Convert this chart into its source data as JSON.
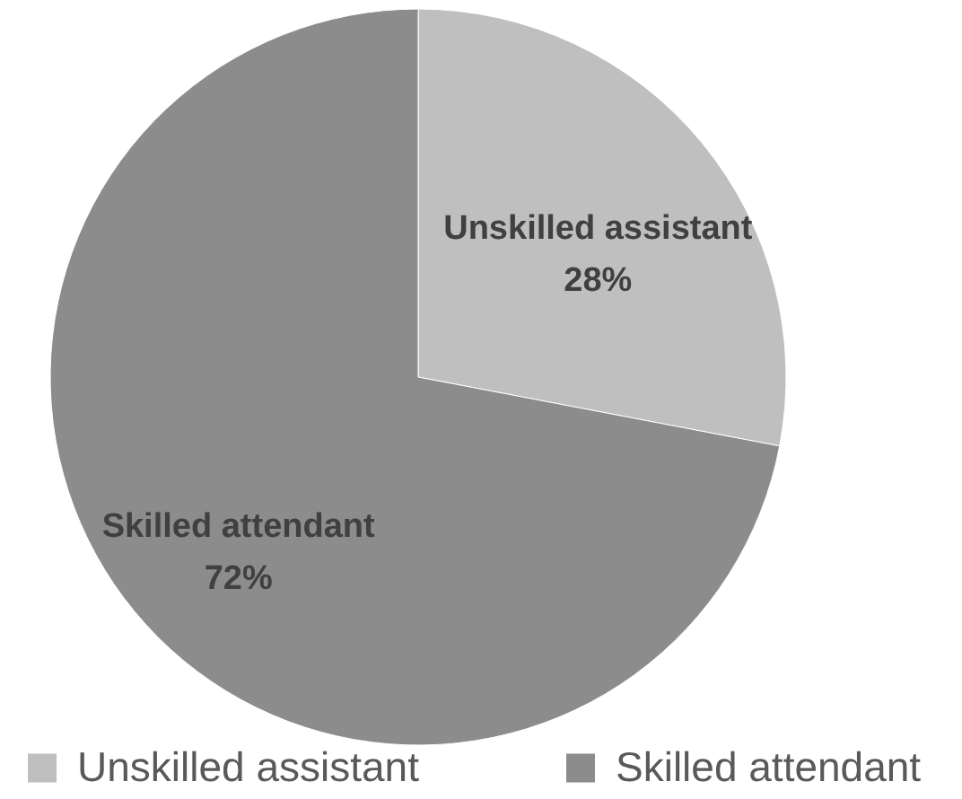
{
  "chart_data": {
    "type": "pie",
    "categories": [
      "Unskilled assistant",
      "Skilled attendant"
    ],
    "values": [
      28,
      72
    ],
    "colors": [
      "#bfbfbf",
      "#8c8c8c"
    ],
    "value_labels": [
      "28%",
      "72%"
    ],
    "legend": "bottom"
  }
}
